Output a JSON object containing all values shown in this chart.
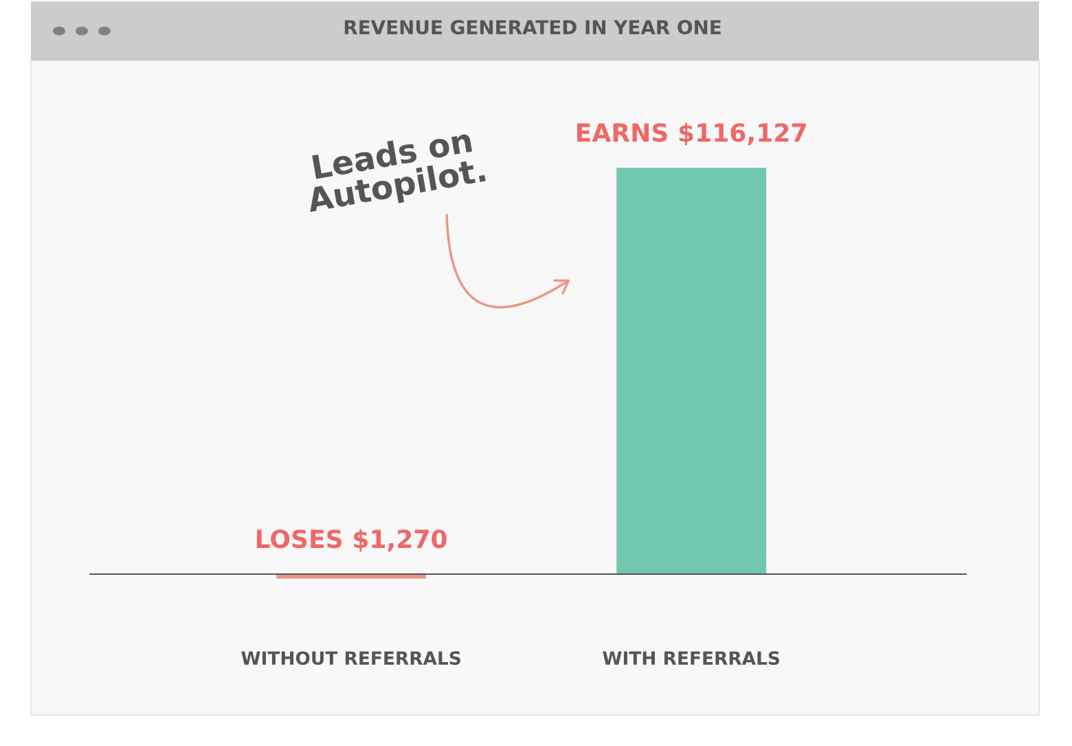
{
  "chart_data": {
    "type": "bar",
    "title": "REVENUE GENERATED IN YEAR ONE",
    "categories": [
      "WITHOUT REFERRALS",
      "WITH REFERRALS"
    ],
    "values": [
      -1270,
      116127
    ],
    "colors": [
      "#eb9686",
      "#70c7af"
    ],
    "value_labels": [
      "LOSES $1,270",
      "EARNS $116,127"
    ],
    "annotations": [
      "Leads on\nAutopilot."
    ],
    "grid": false,
    "legend": false
  }
}
